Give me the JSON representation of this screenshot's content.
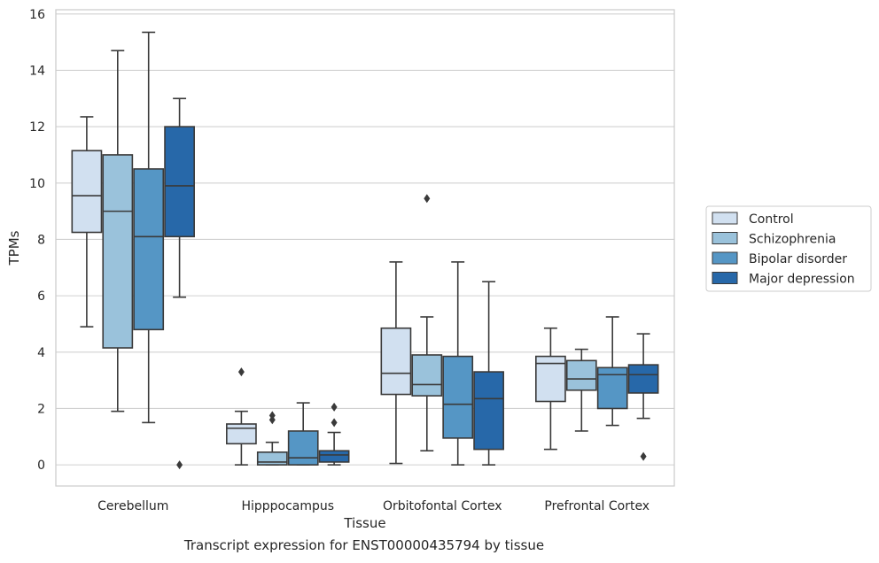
{
  "chart_data": {
    "type": "box",
    "caption": "Transcript expression for ENST00000435794 by tissue",
    "xlabel": "Tissue",
    "ylabel": "TPMs",
    "ylim": [
      -0.75,
      16.15
    ],
    "yticks": [
      0,
      2,
      4,
      6,
      8,
      10,
      12,
      14,
      16
    ],
    "grid": "horizontal",
    "legend_position": "right",
    "categories": [
      "Cerebellum",
      "Hipppocampus",
      "Orbitofontal Cortex",
      "Prefrontal Cortex"
    ],
    "series": [
      {
        "name": "Control",
        "color": "#d1e0f0",
        "boxes": [
          {
            "whislo": 4.9,
            "q1": 8.25,
            "med": 9.55,
            "q3": 11.15,
            "whishi": 12.35,
            "fliers": []
          },
          {
            "whislo": 0.0,
            "q1": 0.75,
            "med": 1.3,
            "q3": 1.45,
            "whishi": 1.9,
            "fliers": [
              3.3
            ]
          },
          {
            "whislo": 0.05,
            "q1": 2.5,
            "med": 3.25,
            "q3": 4.85,
            "whishi": 7.2,
            "fliers": []
          },
          {
            "whislo": 0.55,
            "q1": 2.25,
            "med": 3.6,
            "q3": 3.85,
            "whishi": 4.85,
            "fliers": []
          }
        ]
      },
      {
        "name": "Schizophrenia",
        "color": "#9ac2db",
        "boxes": [
          {
            "whislo": 1.9,
            "q1": 4.15,
            "med": 9.0,
            "q3": 11.0,
            "whishi": 14.7,
            "fliers": []
          },
          {
            "whislo": 0.0,
            "q1": 0.0,
            "med": 0.1,
            "q3": 0.45,
            "whishi": 0.8,
            "fliers": [
              1.6,
              1.75
            ]
          },
          {
            "whislo": 0.5,
            "q1": 2.45,
            "med": 2.85,
            "q3": 3.9,
            "whishi": 5.25,
            "fliers": [
              9.45
            ]
          },
          {
            "whislo": 1.2,
            "q1": 2.65,
            "med": 3.05,
            "q3": 3.7,
            "whishi": 4.1,
            "fliers": []
          }
        ]
      },
      {
        "name": "Bipolar disorder",
        "color": "#5596c5",
        "boxes": [
          {
            "whislo": 1.5,
            "q1": 4.8,
            "med": 8.1,
            "q3": 10.5,
            "whishi": 15.35,
            "fliers": []
          },
          {
            "whislo": 0.0,
            "q1": 0.0,
            "med": 0.25,
            "q3": 1.2,
            "whishi": 2.2,
            "fliers": []
          },
          {
            "whislo": 0.0,
            "q1": 0.95,
            "med": 2.15,
            "q3": 3.85,
            "whishi": 7.2,
            "fliers": []
          },
          {
            "whislo": 1.4,
            "q1": 2.0,
            "med": 3.2,
            "q3": 3.45,
            "whishi": 5.25,
            "fliers": []
          }
        ]
      },
      {
        "name": "Major depression",
        "color": "#2768a9",
        "boxes": [
          {
            "whislo": 5.95,
            "q1": 8.1,
            "med": 9.9,
            "q3": 12.0,
            "whishi": 13.0,
            "fliers": [
              0.0
            ]
          },
          {
            "whislo": 0.0,
            "q1": 0.1,
            "med": 0.35,
            "q3": 0.5,
            "whishi": 1.15,
            "fliers": [
              1.5,
              2.05
            ]
          },
          {
            "whislo": 0.0,
            "q1": 0.55,
            "med": 2.35,
            "q3": 3.3,
            "whishi": 6.5,
            "fliers": []
          },
          {
            "whislo": 1.65,
            "q1": 2.55,
            "med": 3.2,
            "q3": 3.55,
            "whishi": 4.65,
            "fliers": [
              0.3
            ]
          }
        ]
      }
    ]
  }
}
